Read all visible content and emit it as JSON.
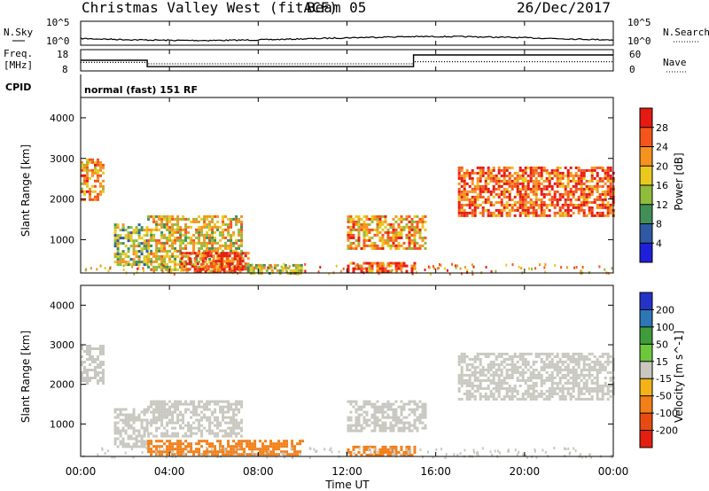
{
  "header": {
    "station": "Christmas Valley West (fitACF)",
    "beam": "Beam 05",
    "date": "26/Dec/2017"
  },
  "noise_panel": {
    "left_label": "N.Sky",
    "right_label": "N.Search",
    "y_max": "10^5",
    "y_min": "10^0",
    "rmax": "10^5",
    "rmin": "10^0"
  },
  "freq_panel": {
    "left_label": "Freq.",
    "left_unit": "[MHz]",
    "right_label": "Nave",
    "y_left_max": "18",
    "y_left_min": "8",
    "y_right_max": "60",
    "y_right_min": "0",
    "freq_steps": [
      {
        "t": 0.0,
        "v": 13.0
      },
      {
        "t": 3.0,
        "v": 10.0
      },
      {
        "t": 15.0,
        "v": 15.5
      },
      {
        "t": 24.0,
        "v": 15.5
      }
    ],
    "nave_steps": [
      {
        "t": 0.0,
        "v": 24
      },
      {
        "t": 3.0,
        "v": 20
      },
      {
        "t": 15.0,
        "v": 26
      },
      {
        "t": 24.0,
        "v": 26
      }
    ]
  },
  "cpid": {
    "label": "CPID",
    "text": "normal (fast) 151 RF"
  },
  "chart_data": [
    {
      "type": "heatmap",
      "name": "power",
      "ylabel": "Slant Range [km]",
      "colorbar_label": "Power [dB]",
      "colorbar_ticks": [
        "28",
        "24",
        "20",
        "16",
        "12",
        "8",
        "4"
      ],
      "colors": [
        "#e51a12",
        "#f5551b",
        "#f7921f",
        "#e9c91d",
        "#8fbc3b",
        "#3f8f56",
        "#2f5aa3",
        "#1f1fd9"
      ],
      "y_ticks": [
        "4000",
        "3000",
        "2000",
        "1000"
      ],
      "ylim": [
        180,
        4500
      ],
      "xlim": [
        0,
        24
      ],
      "regions": [
        {
          "t0": 0.0,
          "t1": 1.0,
          "r0": 2000,
          "r1": 3000,
          "level": 20
        },
        {
          "t0": 1.5,
          "t1": 3.0,
          "r0": 400,
          "r1": 1400,
          "level": 12
        },
        {
          "t0": 3.0,
          "t1": 7.3,
          "r0": 250,
          "r1": 1600,
          "level": 16
        },
        {
          "t0": 4.5,
          "t1": 7.5,
          "r0": 200,
          "r1": 700,
          "level": 26
        },
        {
          "t0": 7.5,
          "t1": 10.0,
          "r0": 200,
          "r1": 400,
          "level": 14
        },
        {
          "t0": 12.0,
          "t1": 15.5,
          "r0": 800,
          "r1": 1600,
          "level": 20
        },
        {
          "t0": 12.0,
          "t1": 15.0,
          "r0": 200,
          "r1": 450,
          "level": 24
        },
        {
          "t0": 17.0,
          "t1": 24.0,
          "r0": 1600,
          "r1": 2800,
          "level": 24
        }
      ]
    },
    {
      "type": "heatmap",
      "name": "velocity",
      "ylabel": "Slant Range [km]",
      "colorbar_label": "Velocity [m s^-1]",
      "colorbar_ticks": [
        "200",
        "100",
        "50",
        "15",
        "-15",
        "-50",
        "-100",
        "-200"
      ],
      "colors": [
        "#2434c8",
        "#2d77b5",
        "#3e9c3a",
        "#6cc83a",
        "#c8c8c0",
        "#f3b318",
        "#f27f18",
        "#e84b12",
        "#e21f10"
      ],
      "y_ticks": [
        "4000",
        "3000",
        "2000",
        "1000"
      ],
      "ylim": [
        180,
        4500
      ],
      "xlim": [
        0,
        24
      ],
      "regions": [
        {
          "t0": 0.0,
          "t1": 1.0,
          "r0": 2000,
          "r1": 3000,
          "level": 0
        },
        {
          "t0": 1.5,
          "t1": 3.0,
          "r0": 400,
          "r1": 1400,
          "level": 0
        },
        {
          "t0": 3.0,
          "t1": 7.3,
          "r0": 700,
          "r1": 1600,
          "level": 0
        },
        {
          "t0": 3.0,
          "t1": 10.0,
          "r0": 200,
          "r1": 600,
          "level": -50
        },
        {
          "t0": 12.0,
          "t1": 15.5,
          "r0": 800,
          "r1": 1600,
          "level": 0
        },
        {
          "t0": 12.0,
          "t1": 15.0,
          "r0": 200,
          "r1": 450,
          "level": -50
        },
        {
          "t0": 17.0,
          "t1": 24.0,
          "r0": 1600,
          "r1": 2800,
          "level": 0
        }
      ]
    }
  ],
  "x_axis": {
    "ticks": [
      "00:00",
      "04:00",
      "08:00",
      "12:00",
      "16:00",
      "20:00",
      "00:00"
    ],
    "tick_hours": [
      0,
      4,
      8,
      12,
      16,
      20,
      24
    ],
    "label": "Time UT"
  }
}
